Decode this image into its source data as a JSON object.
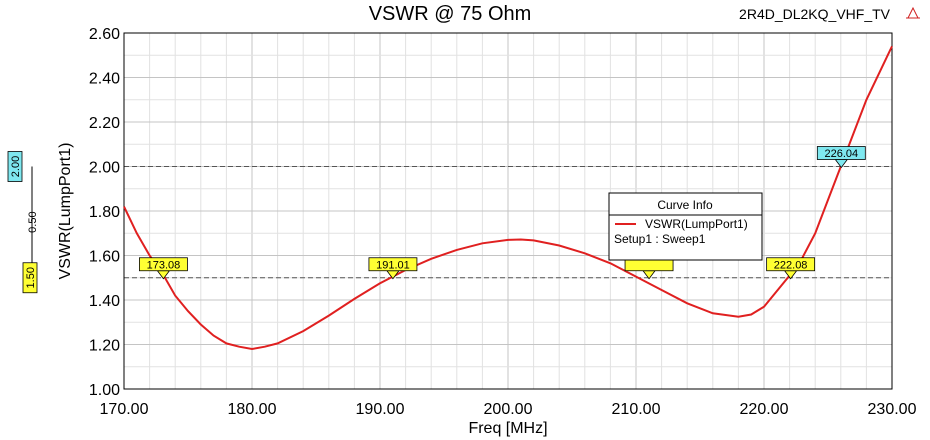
{
  "design_name": "2R4D_DL2KQ_VHF_TV",
  "chart_data": {
    "type": "line",
    "title": "VSWR @ 75 Ohm",
    "xlabel": "Freq [MHz]",
    "ylabel": "VSWR(LumpPort1)",
    "xlim": [
      170,
      230
    ],
    "ylim": [
      1.0,
      2.6
    ],
    "x_ticks": [
      "170.00",
      "180.00",
      "190.00",
      "200.00",
      "210.00",
      "220.00",
      "230.00"
    ],
    "y_ticks": [
      "1.00",
      "1.20",
      "1.40",
      "1.60",
      "1.80",
      "2.00",
      "2.20",
      "2.40",
      "2.60"
    ],
    "grid": true,
    "series": [
      {
        "name": "VSWR(LumpPort1)",
        "color": "#e02020",
        "x": [
          170,
          171,
          172,
          173,
          174,
          175,
          176,
          177,
          178,
          179,
          180,
          181,
          182,
          184,
          186,
          188,
          190,
          192,
          194,
          196,
          198,
          200,
          201,
          202,
          204,
          206,
          208,
          210,
          212,
          214,
          216,
          218,
          219,
          220,
          221,
          222,
          223,
          224,
          225,
          226,
          227,
          228,
          229,
          230
        ],
        "y": [
          1.82,
          1.7,
          1.6,
          1.52,
          1.42,
          1.35,
          1.29,
          1.24,
          1.205,
          1.19,
          1.18,
          1.19,
          1.205,
          1.26,
          1.33,
          1.405,
          1.475,
          1.535,
          1.585,
          1.625,
          1.655,
          1.67,
          1.672,
          1.668,
          1.645,
          1.61,
          1.565,
          1.505,
          1.445,
          1.385,
          1.34,
          1.325,
          1.335,
          1.37,
          1.44,
          1.51,
          1.59,
          1.7,
          1.85,
          2.0,
          2.15,
          2.3,
          2.42,
          2.54
        ]
      }
    ],
    "reference_lines": [
      {
        "value": 2.0,
        "label": "2.00",
        "color": "#7fe8f0"
      },
      {
        "value": 1.5,
        "label": "1.50",
        "color": "#ffff33"
      }
    ],
    "delta_label": "0.50",
    "markers": [
      {
        "x": 173.08,
        "y": 1.5,
        "label": "173.08",
        "color": "#ffff33"
      },
      {
        "x": 191.01,
        "y": 1.5,
        "label": "191.01",
        "color": "#ffff33"
      },
      {
        "x": 211.02,
        "y": 1.5,
        "label": "",
        "color": "#ffff33"
      },
      {
        "x": 222.08,
        "y": 1.5,
        "label": "222.08",
        "color": "#ffff33"
      },
      {
        "x": 226.04,
        "y": 2.0,
        "label": "226.04",
        "color": "#7fe8f0"
      }
    ]
  },
  "curve_info": {
    "title": "Curve Info",
    "trace_name": "VSWR(LumpPort1)",
    "setup": "Setup1 : Sweep1"
  }
}
